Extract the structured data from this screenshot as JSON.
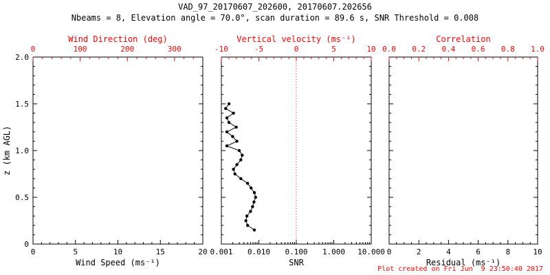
{
  "header": {
    "title": "VAD_97_20170607_202600, 20170607.202656",
    "subtitle": "Nbeams = 8, Elevation angle = 70.0°, scan duration = 89.6 s, SNR Threshold = 0.008"
  },
  "footer": {
    "created": "Plot created on Fri Jun  9 23:50:40 2017"
  },
  "ylabel": "z (km AGL)",
  "colors": {
    "axis": "#000000",
    "secondary_axis": "#ff0000",
    "marker": "#000000",
    "reference_line": "#ff0000"
  },
  "chart_data": [
    {
      "id": "wind-speed",
      "type": "line",
      "bottom_axis": {
        "label": "Wind Speed (ms⁻¹)",
        "min": 0,
        "max": 20,
        "scale": "linear",
        "tick_values": [
          0,
          5,
          10,
          15,
          20
        ],
        "tick_labels": [
          "0",
          "5",
          "10",
          "15",
          "20"
        ],
        "minor_step": 1
      },
      "top_axis": {
        "label": "Wind Direction (deg)",
        "min": 0,
        "max": 360,
        "scale": "linear",
        "tick_values": [
          0,
          100,
          200,
          300
        ],
        "tick_labels": [
          "0",
          "100",
          "200",
          "300"
        ],
        "minor_step": 20
      },
      "y_axis": {
        "min": 0,
        "max": 2,
        "tick_values": [
          0,
          0.5,
          1,
          1.5,
          2
        ],
        "tick_labels": [
          "0",
          "0.5",
          "1.0",
          "1.5",
          "2.0"
        ],
        "minor_step": 0.1,
        "show_labels": true
      },
      "series": []
    },
    {
      "id": "snr",
      "type": "line",
      "bottom_axis": {
        "label": "SNR",
        "min": 0.001,
        "max": 10,
        "scale": "log",
        "tick_values": [
          0.001,
          0.01,
          0.1,
          1,
          10
        ],
        "tick_labels": [
          "0.001",
          "0.010",
          "0.100",
          "1.000",
          "10.000"
        ]
      },
      "top_axis": {
        "label": "Vertical velocity (ms⁻¹)",
        "min": -10,
        "max": 10,
        "scale": "linear",
        "tick_values": [
          -10,
          -5,
          0,
          5,
          10
        ],
        "tick_labels": [
          "-10",
          "-5",
          "0",
          "5",
          "10"
        ],
        "minor_step": 1
      },
      "y_axis": {
        "min": 0,
        "max": 2,
        "tick_values": [
          0,
          0.5,
          1,
          1.5,
          2
        ],
        "tick_labels": [
          "0",
          "0.5",
          "1.0",
          "1.5",
          "2.0"
        ],
        "minor_step": 0.1,
        "show_labels": false
      },
      "reference_line": {
        "value": 0.1,
        "meaning": "vertical velocity = 0"
      },
      "series": [
        {
          "name": "snr-profile",
          "points_format": "[snr, z_km]",
          "points": [
            [
              0.0076,
              0.15
            ],
            [
              0.005,
              0.2
            ],
            [
              0.0045,
              0.25
            ],
            [
              0.0048,
              0.3
            ],
            [
              0.006,
              0.35
            ],
            [
              0.0068,
              0.4
            ],
            [
              0.0074,
              0.45
            ],
            [
              0.0082,
              0.5
            ],
            [
              0.0076,
              0.55
            ],
            [
              0.0062,
              0.6
            ],
            [
              0.005,
              0.65
            ],
            [
              0.0033,
              0.7
            ],
            [
              0.0023,
              0.75
            ],
            [
              0.0021,
              0.8
            ],
            [
              0.0026,
              0.85
            ],
            [
              0.0033,
              0.9
            ],
            [
              0.0036,
              0.95
            ],
            [
              0.003,
              1.0
            ],
            [
              0.0014,
              1.05
            ],
            [
              0.0026,
              1.1
            ],
            [
              0.002,
              1.15
            ],
            [
              0.0014,
              1.2
            ],
            [
              0.0025,
              1.25
            ],
            [
              0.0016,
              1.3
            ],
            [
              0.0014,
              1.35
            ],
            [
              0.0021,
              1.4
            ],
            [
              0.0013,
              1.45
            ],
            [
              0.0016,
              1.5
            ]
          ]
        }
      ]
    },
    {
      "id": "residual",
      "type": "line",
      "bottom_axis": {
        "label": "Residual (ms⁻¹)",
        "min": 0,
        "max": 10,
        "scale": "linear",
        "tick_values": [
          0,
          2,
          4,
          6,
          8,
          10
        ],
        "tick_labels": [
          "0",
          "2",
          "4",
          "6",
          "8",
          "10"
        ],
        "minor_step": 0.5
      },
      "top_axis": {
        "label": "Correlation",
        "min": 0,
        "max": 1,
        "scale": "linear",
        "tick_values": [
          0,
          0.2,
          0.4,
          0.6,
          0.8,
          1
        ],
        "tick_labels": [
          "0.0",
          "0.2",
          "0.4",
          "0.6",
          "0.8",
          "1.0"
        ],
        "minor_step": 0.05
      },
      "y_axis": {
        "min": 0,
        "max": 2,
        "tick_values": [
          0,
          0.5,
          1,
          1.5,
          2
        ],
        "tick_labels": [
          "0",
          "0.5",
          "1.0",
          "1.5",
          "2.0"
        ],
        "minor_step": 0.1,
        "show_labels": false
      },
      "series": []
    }
  ]
}
